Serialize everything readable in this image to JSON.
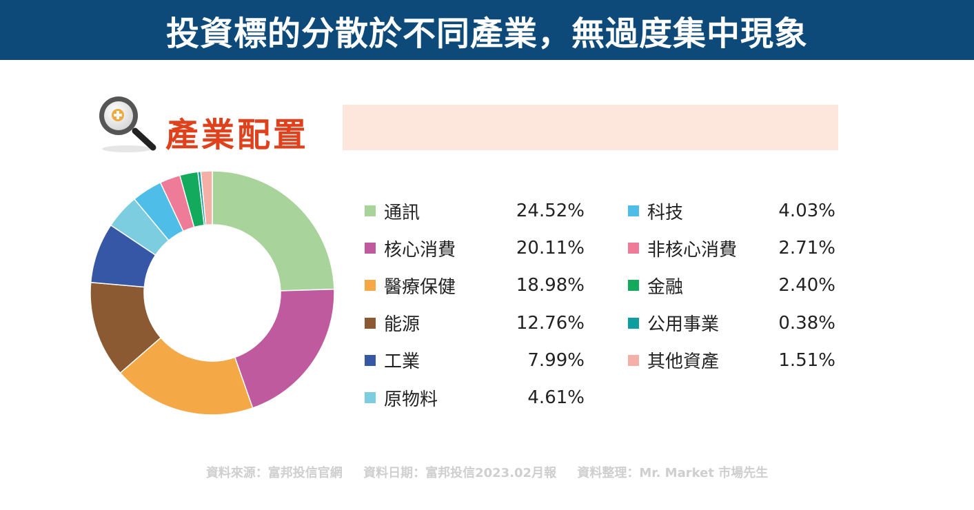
{
  "header": {
    "title": "投資標的分散於不同產業，無過度集中現象"
  },
  "section": {
    "heading": "產業配置",
    "icon": "magnifier-plus-icon"
  },
  "chart_data": {
    "type": "pie",
    "variant": "donut",
    "categories": [
      "通訊",
      "核心消費",
      "醫療保健",
      "能源",
      "工業",
      "原物料",
      "科技",
      "非核心消費",
      "金融",
      "公用事業",
      "其他資產"
    ],
    "values": [
      24.52,
      20.11,
      18.98,
      12.76,
      7.99,
      4.61,
      4.03,
      2.71,
      2.4,
      0.38,
      1.51
    ],
    "labels": [
      "24.52%",
      "20.11%",
      "18.98%",
      "12.76%",
      "7.99%",
      "4.61%",
      "4.03%",
      "2.71%",
      "2.40%",
      "0.38%",
      "1.51%"
    ],
    "colors": [
      "#a8d49c",
      "#c05a9e",
      "#f4a846",
      "#8b5a32",
      "#3656a6",
      "#7ccde0",
      "#4ebde8",
      "#ee7b98",
      "#14aa5e",
      "#0f9ea0",
      "#f4b0a6"
    ],
    "unit": "%",
    "legend_position": "right",
    "legend_columns": 2
  },
  "footer": {
    "source": "資料來源：富邦投信官網",
    "date": "資料日期：富邦投信2023.02月報",
    "compiled": "資料整理：Mr. Market 市場先生"
  }
}
